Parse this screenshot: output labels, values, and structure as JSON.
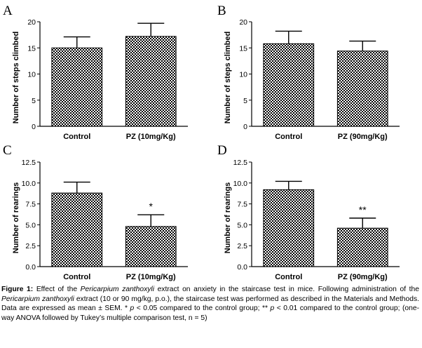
{
  "chart_data": [
    {
      "type": "bar",
      "panel_label": "A",
      "ylabel": "Number of steps climbed",
      "ylim": [
        0,
        20
      ],
      "yticks": [
        "0",
        "5",
        "10",
        "15",
        "20"
      ],
      "categories": [
        "Control",
        "PZ (10mg/Kg)"
      ],
      "values": [
        15.0,
        17.2
      ],
      "errors": [
        2.1,
        2.5
      ],
      "annotations": [
        "",
        ""
      ]
    },
    {
      "type": "bar",
      "panel_label": "B",
      "ylabel": "Number of steps climbed",
      "ylim": [
        0,
        20
      ],
      "yticks": [
        "0",
        "5",
        "10",
        "15",
        "20"
      ],
      "categories": [
        "Control",
        "PZ (90mg/Kg)"
      ],
      "values": [
        15.8,
        14.4
      ],
      "errors": [
        2.4,
        1.9
      ],
      "annotations": [
        "",
        ""
      ]
    },
    {
      "type": "bar",
      "panel_label": "C",
      "ylabel": "Number of rearings",
      "ylim": [
        0,
        12.5
      ],
      "yticks": [
        "0.0",
        "2.5",
        "5.0",
        "7.5",
        "10.0",
        "12.5"
      ],
      "categories": [
        "Control",
        "PZ (10mg/Kg)"
      ],
      "values": [
        8.8,
        4.8
      ],
      "errors": [
        1.3,
        1.4
      ],
      "annotations": [
        "",
        "*"
      ]
    },
    {
      "type": "bar",
      "panel_label": "D",
      "ylabel": "Number of rearings",
      "ylim": [
        0,
        12.5
      ],
      "yticks": [
        "0.0",
        "2.5",
        "5.0",
        "7.5",
        "10.0",
        "12.5"
      ],
      "categories": [
        "Control",
        "PZ (90mg/Kg)"
      ],
      "values": [
        9.2,
        4.6
      ],
      "errors": [
        1.0,
        1.2
      ],
      "annotations": [
        "",
        "**"
      ]
    }
  ],
  "caption": {
    "label": "Figure 1:",
    "p1": " Effect of the ",
    "species1": "Pericarpium zanthoxyli",
    "p2": " extract on anxiety in the staircase test in mice. Following administration of the ",
    "species2": "Pericarpium zanthoxyli",
    "p3": " extract (10 or 90 mg/kg, p.o.), the staircase test was performed as described in the Materials and Methods. Data are expressed as mean ± SEM. * ",
    "pvar1": "p",
    "p4": " < 0.05 compared to the control group; ** ",
    "pvar2": "p",
    "p5": " < 0.01 compared to the control group; (one-way ANOVA followed by Tukey’s multiple comparison test, n = 5)"
  },
  "colors": {
    "bar_fill": "#000000",
    "background": "#ffffff"
  }
}
